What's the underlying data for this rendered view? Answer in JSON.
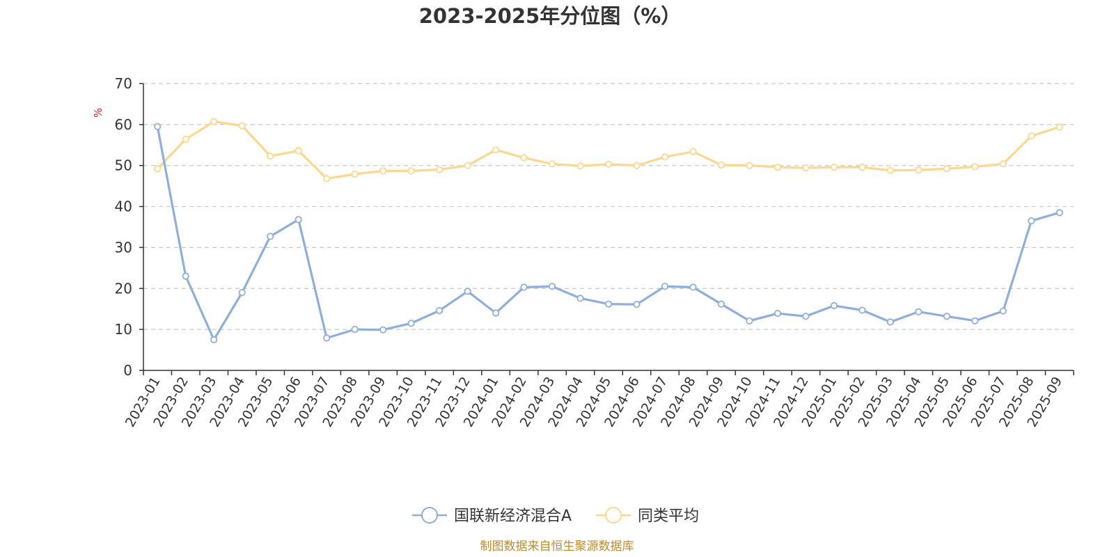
{
  "chart_data": {
    "type": "line",
    "title": "2023-2025年分位图（%）",
    "ylabel": "%",
    "ylim": [
      0,
      70
    ],
    "yticks": [
      0,
      10,
      20,
      30,
      40,
      50,
      60,
      70
    ],
    "grid": true,
    "legend_position": "bottom",
    "categories": [
      "2023-01",
      "2023-02",
      "2023-03",
      "2023-04",
      "2023-05",
      "2023-06",
      "2023-07",
      "2023-08",
      "2023-09",
      "2023-10",
      "2023-11",
      "2023-12",
      "2024-01",
      "2024-02",
      "2024-03",
      "2024-04",
      "2024-05",
      "2024-06",
      "2024-07",
      "2024-08",
      "2024-09",
      "2024-10",
      "2024-11",
      "2024-12",
      "2025-01",
      "2025-02",
      "2025-03",
      "2025-04",
      "2025-05",
      "2025-06",
      "2025-07",
      "2025-08",
      "2025-09"
    ],
    "series": [
      {
        "name": "国联新经济混合A",
        "color": "#8eaedb",
        "values": [
          59.5,
          23.0,
          7.5,
          19.0,
          32.7,
          36.8,
          7.9,
          10.0,
          9.9,
          11.5,
          14.6,
          19.3,
          14.0,
          20.3,
          20.5,
          17.6,
          16.2,
          16.1,
          20.5,
          20.3,
          16.2,
          12.1,
          13.9,
          13.2,
          15.8,
          14.7,
          11.8,
          14.3,
          13.2,
          12.1,
          14.5,
          36.5,
          38.5
        ]
      },
      {
        "name": "同类平均",
        "color": "#fbd88e",
        "values": [
          49.2,
          56.4,
          60.7,
          59.7,
          52.3,
          53.6,
          46.8,
          47.9,
          48.7,
          48.7,
          49.0,
          50.0,
          53.8,
          51.9,
          50.4,
          49.9,
          50.3,
          50.0,
          52.1,
          53.4,
          50.1,
          50.0,
          49.6,
          49.4,
          49.6,
          49.6,
          48.8,
          48.9,
          49.2,
          49.7,
          50.4,
          57.2,
          59.4
        ]
      }
    ]
  },
  "footer": {
    "source": "制图数据来自恒生聚源数据库"
  }
}
